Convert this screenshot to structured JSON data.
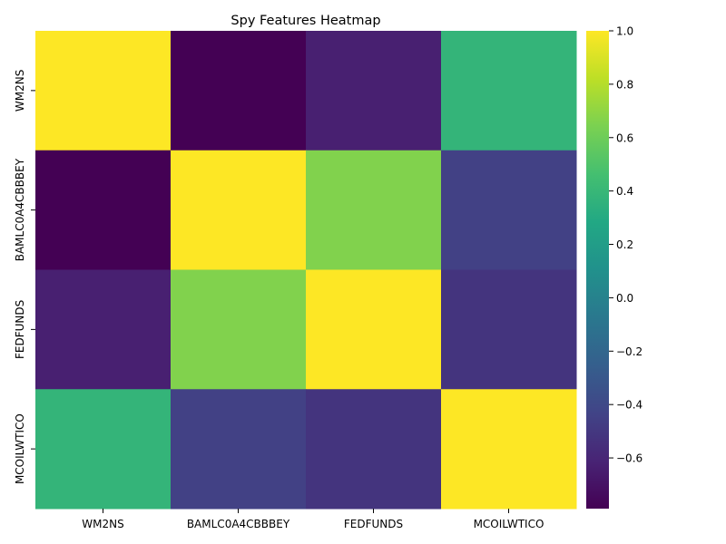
{
  "chart_data": {
    "type": "heatmap",
    "title": "Spy Features Heatmap",
    "xlabel": "",
    "ylabel": "",
    "x_categories": [
      "WM2NS",
      "BAMLC0A4CBBBEY",
      "FEDFUNDS",
      "MCOILWTICO"
    ],
    "y_categories": [
      "WM2NS",
      "BAMLC0A4CBBBEY",
      "FEDFUNDS",
      "MCOILWTICO"
    ],
    "values": [
      [
        1.0,
        -0.79,
        -0.63,
        0.38
      ],
      [
        -0.79,
        1.0,
        0.66,
        -0.45
      ],
      [
        -0.63,
        0.66,
        1.0,
        -0.52
      ],
      [
        0.38,
        -0.45,
        -0.52,
        1.0
      ]
    ],
    "colorbar": {
      "colormap": "viridis",
      "vmin": -0.79,
      "vmax": 1.0,
      "ticks": [
        1.0,
        0.8,
        0.6,
        0.4,
        0.2,
        0.0,
        -0.2,
        -0.4,
        -0.6
      ],
      "tick_labels": [
        "1.0",
        "0.8",
        "0.6",
        "0.4",
        "0.2",
        "0.0",
        "−0.2",
        "−0.4",
        "−0.6"
      ]
    }
  }
}
